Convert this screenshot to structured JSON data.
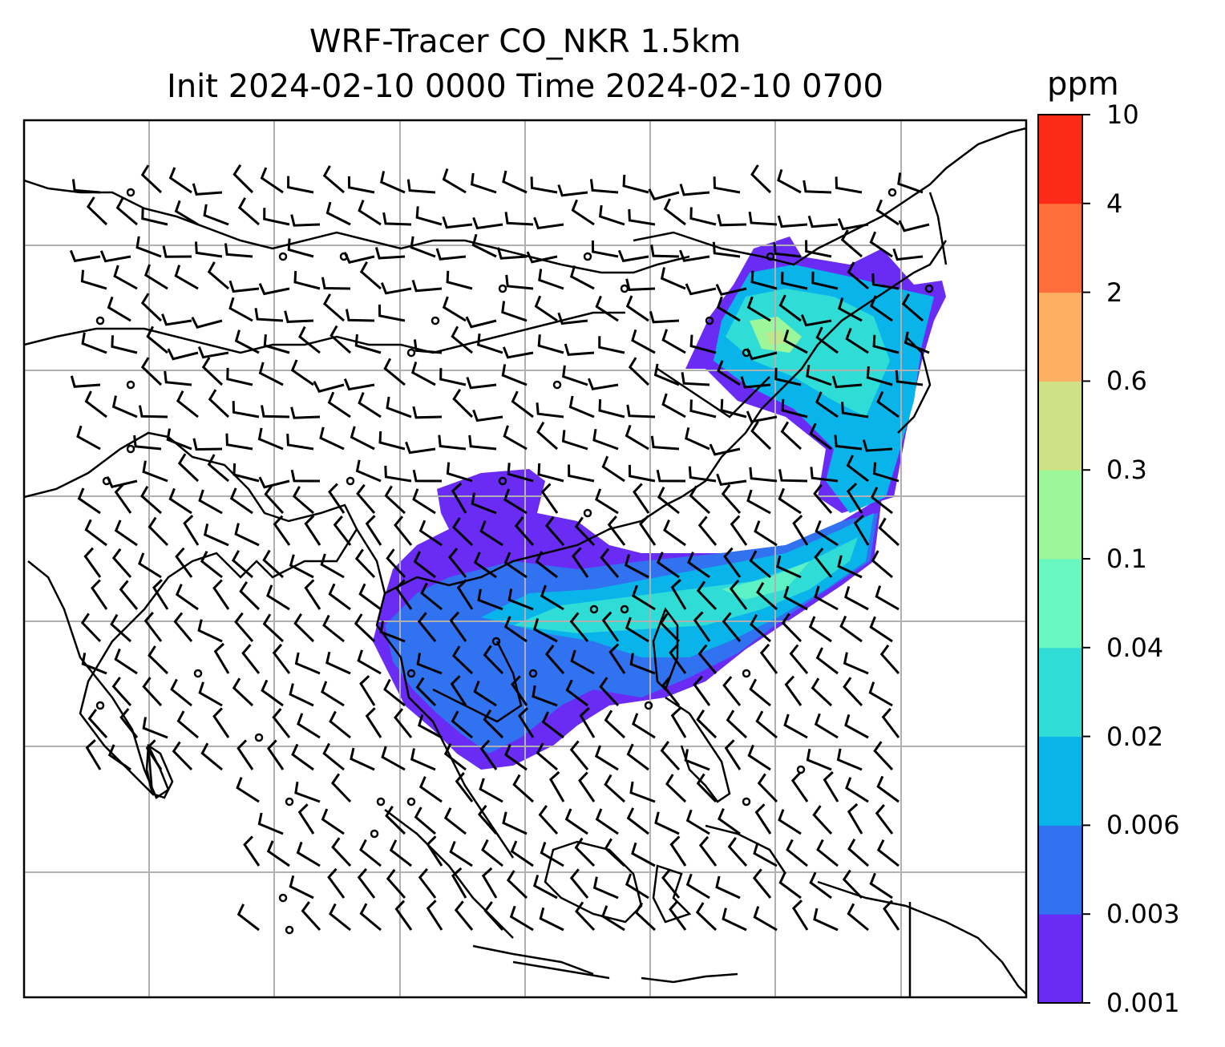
{
  "title": {
    "line1": "WRF-Tracer CO_NKR 1.5km",
    "line2": "Init 2024-02-10 0000 Time 2024-02-10 0700"
  },
  "colorbar": {
    "unit": "ppm",
    "levels": [
      "0.001",
      "0.003",
      "0.006",
      "0.02",
      "0.04",
      "0.1",
      "0.3",
      "0.6",
      "2",
      "4",
      "10"
    ],
    "colors": [
      "#6a2cf5",
      "#3172f0",
      "#08b4ea",
      "#2fdcd6",
      "#68f7c0",
      "#9cf79a",
      "#cfe085",
      "#fdb061",
      "#fd6e3a",
      "#fb2b17"
    ]
  },
  "map": {
    "projection": "plate-carree",
    "gridlines": true,
    "coastlines": true,
    "overlay": "wind-barbs",
    "field": "CO tracer concentration"
  }
}
